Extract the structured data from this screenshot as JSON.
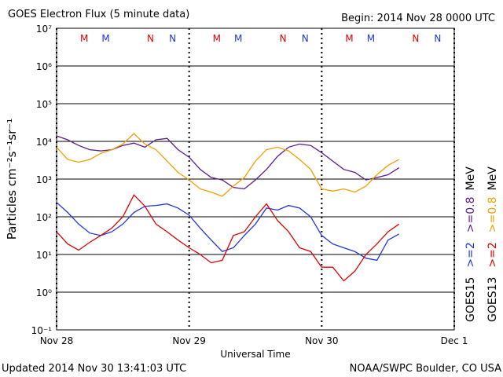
{
  "chart_data": {
    "type": "line",
    "title": "GOES Electron Flux (5 minute data)",
    "subtitle": "Begin: 2014 Nov 28 0000 UTC",
    "x_label": "Universal Time",
    "y_label": "Particles cm⁻²s⁻¹sr⁻¹",
    "footer_left": "Updated 2014 Nov 30 13:41:03 UTC",
    "footer_right": "NOAA/SWPC Boulder, CO USA",
    "log_y": true,
    "grid": true,
    "threshold": 1000,
    "xlim": [
      0,
      72
    ],
    "xticks": [
      {
        "value": 0,
        "label": "Nov 28"
      },
      {
        "value": 24,
        "label": "Nov 29"
      },
      {
        "value": 48,
        "label": "Nov 30"
      },
      {
        "value": 72,
        "label": "Dec 1"
      }
    ],
    "ylim": [
      0.1,
      10000000
    ],
    "yticks": [
      {
        "value": 0.1,
        "label": "10⁻¹"
      },
      {
        "value": 1,
        "label": "10⁰"
      },
      {
        "value": 10,
        "label": "10¹"
      },
      {
        "value": 100,
        "label": "10²"
      },
      {
        "value": 1000,
        "label": "10³"
      },
      {
        "value": 10000,
        "label": "10⁴"
      },
      {
        "value": 100000,
        "label": "10⁵"
      },
      {
        "value": 1000000,
        "label": "10⁶"
      },
      {
        "value": 10000000,
        "label": "10⁷"
      }
    ],
    "markers": [
      {
        "label": "M",
        "color": "#e00000",
        "x": 5.0
      },
      {
        "label": "M",
        "color": "#2233dd",
        "x": 8.9
      },
      {
        "label": "N",
        "color": "#e00000",
        "x": 17.0
      },
      {
        "label": "N",
        "color": "#2233dd",
        "x": 21.0
      },
      {
        "label": "M",
        "color": "#e00000",
        "x": 29.0
      },
      {
        "label": "M",
        "color": "#2233dd",
        "x": 32.9
      },
      {
        "label": "N",
        "color": "#e00000",
        "x": 41.0
      },
      {
        "label": "N",
        "color": "#2233dd",
        "x": 45.0
      },
      {
        "label": "M",
        "color": "#e00000",
        "x": 53.0
      },
      {
        "label": "M",
        "color": "#2233dd",
        "x": 56.9
      },
      {
        "label": "N",
        "color": "#e00000",
        "x": 65.0
      },
      {
        "label": "N",
        "color": "#2233dd",
        "x": 69.0
      }
    ],
    "x": [
      0,
      2,
      4,
      6,
      8,
      10,
      12,
      14,
      16,
      18,
      20,
      22,
      24,
      26,
      28,
      30,
      32,
      34,
      36,
      38,
      40,
      42,
      44,
      46,
      48,
      50,
      52,
      54,
      56,
      58,
      60,
      62
    ],
    "unit": "MeV",
    "groups": [
      {
        "name": "GOES15",
        "series": [
          {
            "name": ">=2",
            "color": "#2233dd",
            "values": [
              240,
              130,
              64,
              37,
              32,
              40,
              64,
              130,
              190,
              200,
              220,
              170,
              110,
              50,
              24,
              12,
              15,
              32,
              64,
              170,
              150,
              200,
              170,
              100,
              32,
              19,
              15,
              12,
              8,
              7,
              24,
              35
            ]
          },
          {
            "name": ">=0.8",
            "color": "#5a1a90",
            "values": [
              14000,
              11000,
              7800,
              6000,
              5600,
              6000,
              7800,
              9000,
              7000,
              11000,
              12000,
              6000,
              3800,
              1800,
              1100,
              950,
              600,
              550,
              950,
              1800,
              4000,
              7000,
              8500,
              7800,
              5000,
              3000,
              1800,
              1500,
              950,
              1100,
              1300,
              2000
            ]
          }
        ]
      },
      {
        "name": "GOES13",
        "series": [
          {
            "name": ">=2",
            "color": "#e00000",
            "values": [
              40,
              19,
              13,
              21,
              32,
              50,
              100,
              380,
              190,
              64,
              40,
              24,
              15,
              10,
              6,
              7,
              32,
              40,
              100,
              220,
              80,
              40,
              15,
              12,
              4.6,
              4.6,
              2,
              3.6,
              10,
              19,
              40,
              64
            ]
          },
          {
            "name": ">=0.8",
            "color": "#f0a000",
            "values": [
              7000,
              3300,
              2800,
              3300,
              4800,
              6000,
              8500,
              16000,
              8500,
              6000,
              3000,
              1500,
              950,
              550,
              450,
              350,
              650,
              1100,
              3000,
              6000,
              7000,
              5600,
              3300,
              1800,
              550,
              480,
              550,
              450,
              650,
              1300,
              2300,
              3300
            ]
          }
        ]
      }
    ]
  }
}
